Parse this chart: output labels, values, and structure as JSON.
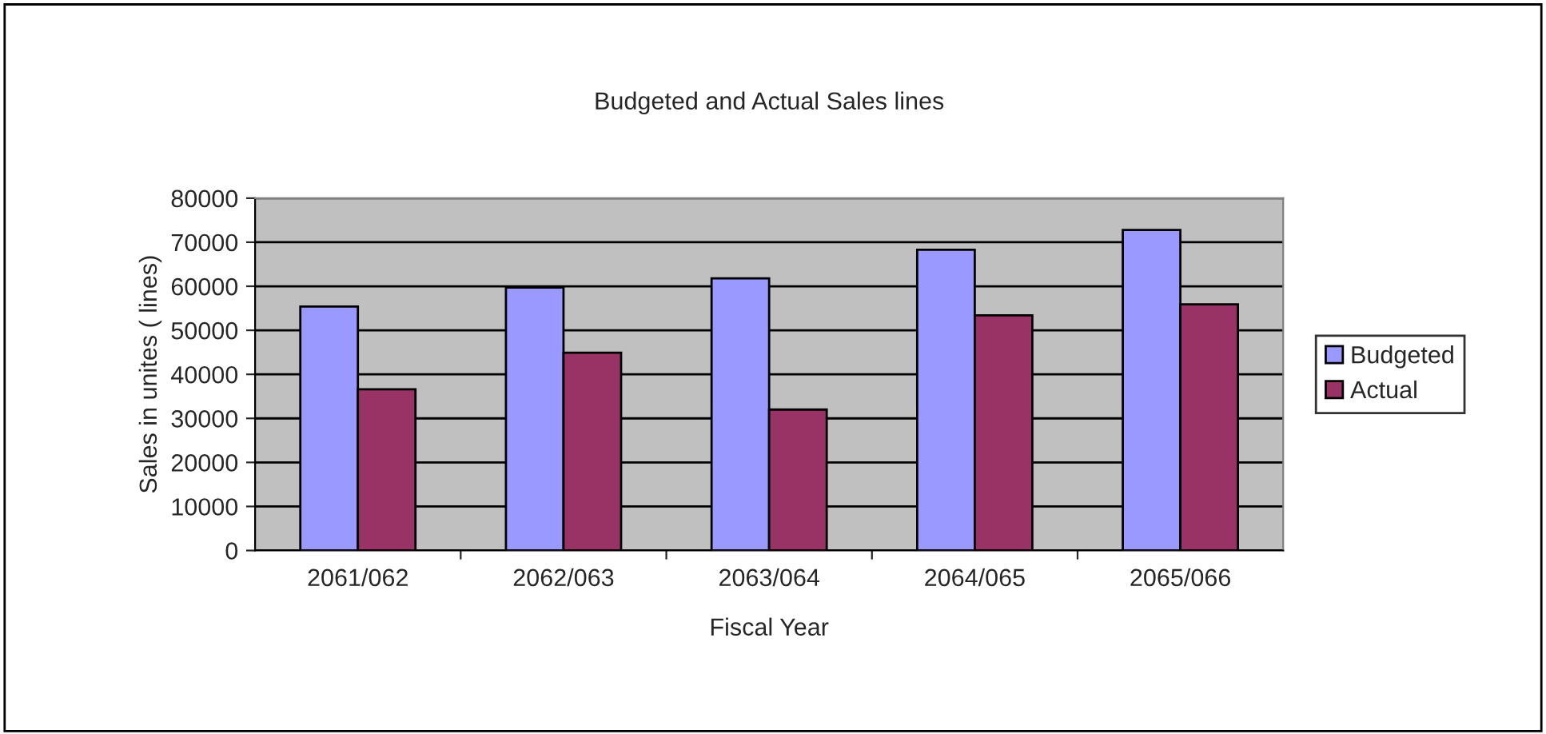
{
  "chart_data": {
    "type": "bar",
    "title": "Budgeted and Actual Sales lines",
    "xlabel": "Fiscal Year",
    "ylabel": "Sales in unites ( lines)",
    "categories": [
      "2061/062",
      "2062/063",
      "2063/064",
      "2064/065",
      "2065/066"
    ],
    "series": [
      {
        "name": "Budgeted",
        "color": "#9999ff",
        "values": [
          55400,
          59700,
          61800,
          68300,
          72800
        ]
      },
      {
        "name": "Actual",
        "color": "#993366",
        "values": [
          36600,
          44900,
          32000,
          53400,
          55900
        ]
      }
    ],
    "ylim": [
      0,
      80000
    ],
    "yticks": [
      0,
      10000,
      20000,
      30000,
      40000,
      50000,
      60000,
      70000,
      80000
    ],
    "grid": "y",
    "legend": "right"
  }
}
